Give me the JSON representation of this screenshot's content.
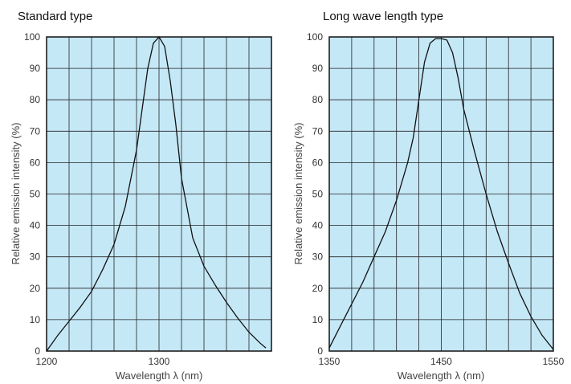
{
  "chart_data": [
    {
      "type": "line",
      "title": "Standard type",
      "xlabel": "Wavelength λ (nm)",
      "ylabel": "Relative emission intensity (%)",
      "xlim": [
        1200,
        1400
      ],
      "ylim": [
        0,
        100
      ],
      "x_tick_labels": [
        "1200",
        "1300"
      ],
      "x_tick_values": [
        1200,
        1300
      ],
      "y_tick_labels": [
        "0",
        "10",
        "20",
        "30",
        "40",
        "50",
        "60",
        "70",
        "80",
        "90",
        "100"
      ],
      "grid": true,
      "colors": {
        "plot_bg": "#c5e8f7",
        "line": "#111111",
        "grid": "#222222"
      },
      "series": [
        {
          "x": [
            1200,
            1210,
            1220,
            1230,
            1240,
            1250,
            1260,
            1270,
            1280,
            1285,
            1290,
            1295,
            1300,
            1305,
            1310,
            1315,
            1320,
            1330,
            1340,
            1350,
            1360,
            1370,
            1380,
            1390,
            1395
          ],
          "y": [
            0,
            5,
            9.5,
            14,
            19,
            26,
            34,
            46,
            64,
            77,
            90,
            98,
            100,
            97,
            86,
            72,
            55,
            36,
            27,
            21,
            15.5,
            10.5,
            6,
            2.5,
            1
          ]
        }
      ]
    },
    {
      "type": "line",
      "title": "Long wave length type",
      "xlabel": "Wavelength λ (nm)",
      "ylabel": "Relative emission intensity (%)",
      "xlim": [
        1350,
        1550
      ],
      "ylim": [
        0,
        100
      ],
      "x_tick_labels": [
        "1350",
        "1450",
        "1550"
      ],
      "x_tick_values": [
        1350,
        1450,
        1550
      ],
      "y_tick_labels": [
        "0",
        "10",
        "20",
        "30",
        "40",
        "50",
        "60",
        "70",
        "80",
        "90",
        "100"
      ],
      "grid": true,
      "colors": {
        "plot_bg": "#c5e8f7",
        "line": "#111111",
        "grid": "#222222"
      },
      "series": [
        {
          "x": [
            1350,
            1360,
            1370,
            1380,
            1390,
            1400,
            1410,
            1420,
            1425,
            1430,
            1435,
            1440,
            1445,
            1450,
            1455,
            1460,
            1465,
            1470,
            1480,
            1490,
            1500,
            1510,
            1520,
            1530,
            1540,
            1550
          ],
          "y": [
            1,
            8,
            15,
            22,
            30,
            38,
            48,
            60,
            68,
            80,
            92,
            98,
            99.5,
            99.5,
            99,
            95,
            87,
            77,
            63,
            50,
            38,
            28,
            18.5,
            11,
            5,
            0.5
          ]
        }
      ]
    }
  ]
}
